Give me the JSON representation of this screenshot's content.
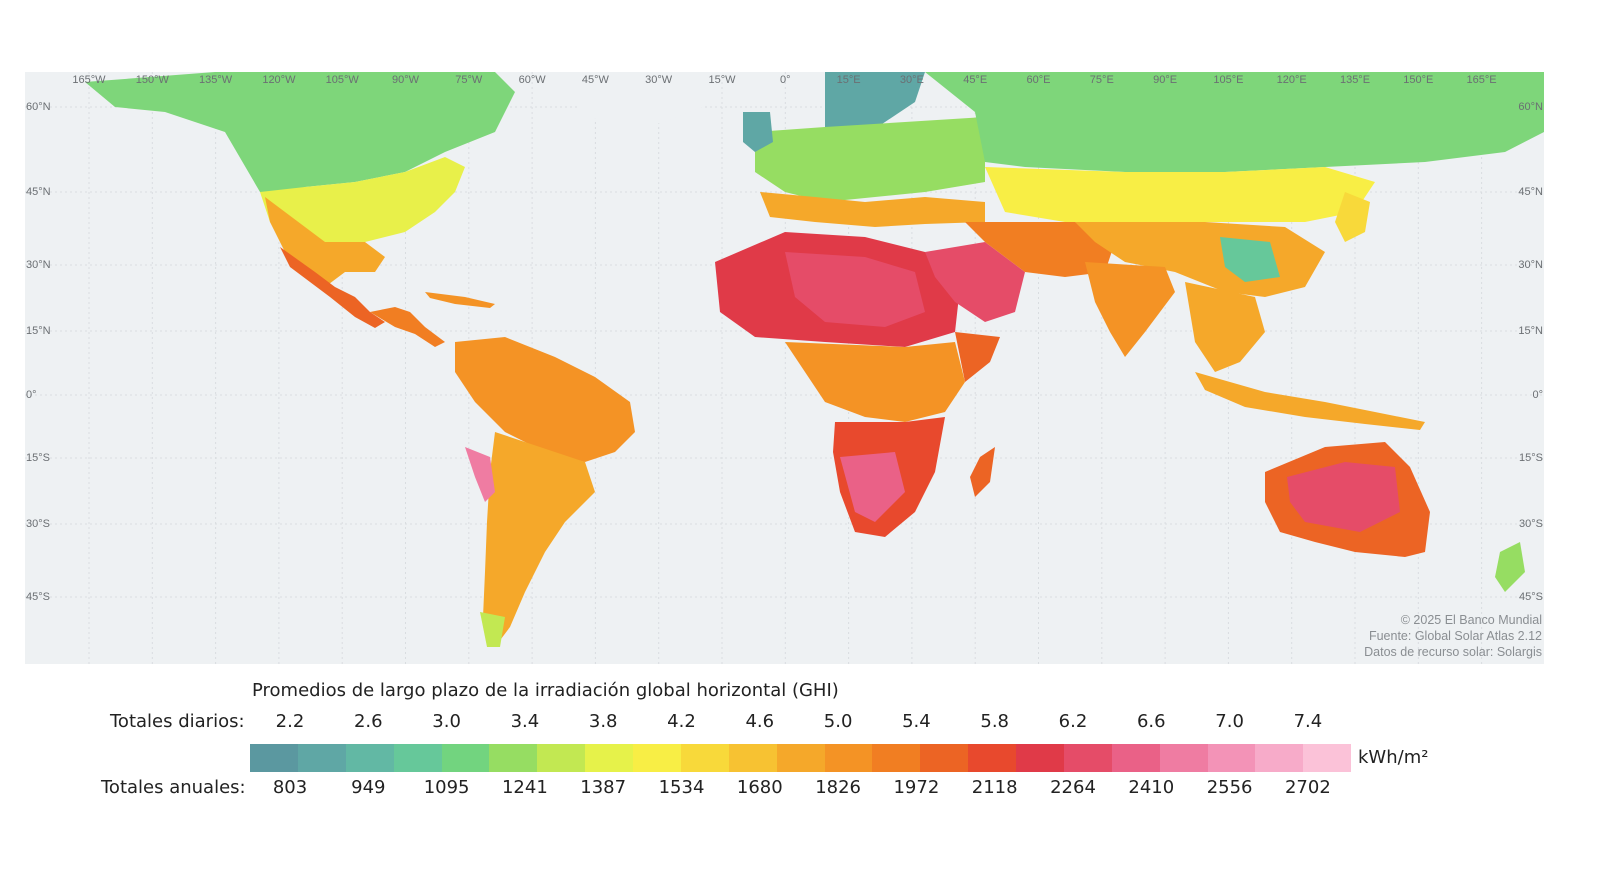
{
  "map": {
    "lon_labels": [
      "165°W",
      "150°W",
      "135°W",
      "120°W",
      "105°W",
      "90°W",
      "75°W",
      "60°W",
      "45°W",
      "30°W",
      "15°W",
      "0°",
      "15°E",
      "30°E",
      "45°E",
      "60°E",
      "75°E",
      "90°E",
      "105°E",
      "120°E",
      "135°E",
      "150°E",
      "165°E"
    ],
    "lat_labels": [
      "60°N",
      "45°N",
      "30°N",
      "15°N",
      "0°",
      "15°S",
      "30°S",
      "45°S"
    ],
    "credits": [
      "© 2025 El Banco Mundial",
      "Fuente: Global Solar Atlas 2.12",
      "Datos de recurso solar: Solargis"
    ],
    "colors": {
      "ocean": "#eef1f3",
      "grid": "#d9dde0",
      "borders": "#3a3a3a"
    }
  },
  "legend": {
    "title": "Promedios de largo plazo de la irradiación global horizontal (GHI)",
    "daily_label": "Totales diarios:",
    "annual_label": "Totales anuales:",
    "daily_values": [
      "2.2",
      "2.6",
      "3.0",
      "3.4",
      "3.8",
      "4.2",
      "4.6",
      "5.0",
      "5.4",
      "5.8",
      "6.2",
      "6.6",
      "7.0",
      "7.4"
    ],
    "annual_values": [
      "803",
      "949",
      "1095",
      "1241",
      "1387",
      "1534",
      "1680",
      "1826",
      "1972",
      "2118",
      "2264",
      "2410",
      "2556",
      "2702"
    ],
    "unit": "kWh/m²",
    "colors": [
      "#5b98a0",
      "#5fa7a5",
      "#62b8a4",
      "#66c89a",
      "#72d47f",
      "#96dd62",
      "#c2e852",
      "#e6f24a",
      "#f8ee45",
      "#f8d93a",
      "#f7c232",
      "#f5a82a",
      "#f49325",
      "#f17e22",
      "#ec6424",
      "#e8492d",
      "#e03a48",
      "#e54c68",
      "#ea6187",
      "#ef7ca2",
      "#f393b7",
      "#f7abc9",
      "#fbc2d8"
    ]
  }
}
